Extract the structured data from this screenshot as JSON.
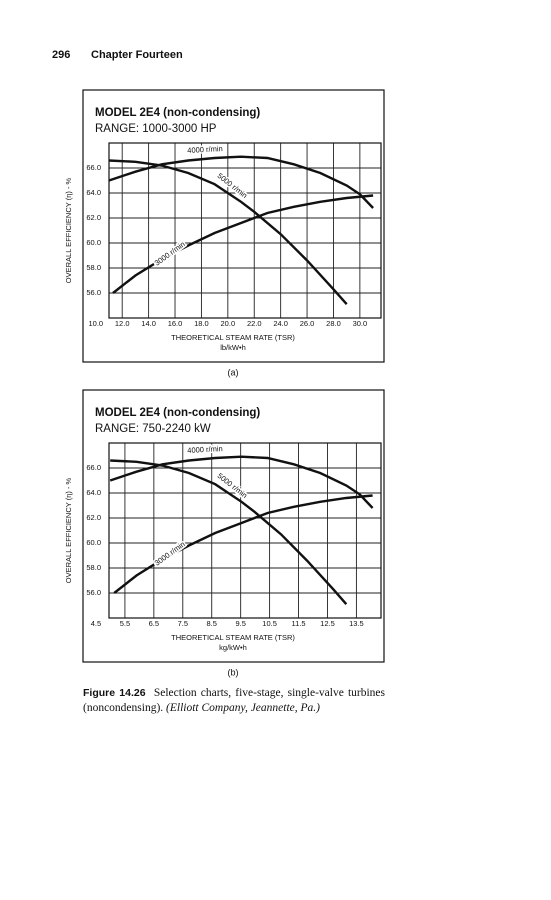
{
  "header": {
    "page": "296",
    "chapter": "Chapter Fourteen"
  },
  "chart_data": [
    {
      "type": "line",
      "title": "MODEL 2E4 (non-condensing)",
      "subtitle": "RANGE: 1000-3000 HP",
      "xlabel": "THEORETICAL STEAM RATE (TSR)",
      "x_unit": "lb/kW•h",
      "ylabel": "OVERALL EFFICIENCY (η) - %",
      "panel_label": "(a)",
      "xlim": [
        11.0,
        31.6
      ],
      "ylim": [
        54,
        68
      ],
      "grid": true,
      "xticks": [
        {
          "value": 10,
          "label": "10.0"
        },
        {
          "value": 12,
          "label": "12.0"
        },
        {
          "value": 14,
          "label": "14.0"
        },
        {
          "value": 16,
          "label": "16.0"
        },
        {
          "value": 18,
          "label": "18.0"
        },
        {
          "value": 20,
          "label": "20.0"
        },
        {
          "value": 22,
          "label": "22.0"
        },
        {
          "value": 24,
          "label": "24.0"
        },
        {
          "value": 26,
          "label": "26.0"
        },
        {
          "value": 28,
          "label": "28.0"
        },
        {
          "value": 30,
          "label": "30.0"
        }
      ],
      "yticks": [
        {
          "value": 56,
          "label": "56.0"
        },
        {
          "value": 58,
          "label": "58.0"
        },
        {
          "value": 60,
          "label": "60.0"
        },
        {
          "value": 62,
          "label": "62.0"
        },
        {
          "value": 64,
          "label": "64.0"
        },
        {
          "value": 66,
          "label": "66.0"
        }
      ],
      "series": [
        {
          "name": "4000 r/min",
          "color": "#111111",
          "x": [
            11,
            13,
            15,
            17,
            19,
            21,
            23,
            25,
            27,
            29,
            30,
            31
          ],
          "values": [
            65.0,
            65.7,
            66.3,
            66.6,
            66.8,
            66.9,
            66.8,
            66.3,
            65.6,
            64.6,
            63.9,
            62.8
          ]
        },
        {
          "name": "5000 r/min",
          "color": "#111111",
          "x": [
            11,
            13,
            15,
            17,
            19,
            21,
            22,
            24,
            26,
            28,
            29
          ],
          "values": [
            66.6,
            66.5,
            66.2,
            65.6,
            64.7,
            63.3,
            62.5,
            60.7,
            58.6,
            56.3,
            55.1
          ]
        },
        {
          "name": "3000 r/min",
          "color": "#111111",
          "x": [
            11.3,
            13,
            15,
            17,
            19,
            21,
            23,
            25,
            27,
            29,
            31
          ],
          "values": [
            56.0,
            57.4,
            58.7,
            59.8,
            60.8,
            61.6,
            62.4,
            62.9,
            63.3,
            63.6,
            63.8
          ]
        }
      ]
    },
    {
      "type": "line",
      "title": "MODEL 2E4 (non-condensing)",
      "subtitle": "RANGE: 750-2240 kW",
      "xlabel": "THEORETICAL STEAM RATE (TSR)",
      "x_unit": "kg/kW•h",
      "ylabel": "OVERALL EFFICIENCY (η) - %",
      "panel_label": "(b)",
      "xlim": [
        4.95,
        14.35
      ],
      "ylim": [
        54,
        68
      ],
      "grid": true,
      "xticks": [
        4.5,
        5.5,
        6.5,
        7.5,
        8.5,
        9.5,
        10.5,
        11.5,
        12.5,
        13.5
      ],
      "yticks": [
        {
          "value": 56,
          "label": "56.0"
        },
        {
          "value": 58,
          "label": "58.0"
        },
        {
          "value": 60,
          "label": "60.0"
        },
        {
          "value": 62,
          "label": "62.0"
        },
        {
          "value": 64,
          "label": "64.0"
        },
        {
          "value": 66,
          "label": "66.0"
        }
      ],
      "series": [
        {
          "name": "4000 r/min",
          "color": "#111111",
          "x": [
            4.99,
            5.9,
            6.8,
            7.71,
            8.62,
            9.53,
            10.43,
            11.34,
            12.25,
            13.15,
            13.61,
            14.06
          ],
          "values": [
            65.0,
            65.7,
            66.3,
            66.6,
            66.8,
            66.9,
            66.8,
            66.3,
            65.6,
            64.6,
            63.9,
            62.8
          ]
        },
        {
          "name": "5000 r/min",
          "color": "#111111",
          "x": [
            4.99,
            5.9,
            6.8,
            7.71,
            8.62,
            9.53,
            9.98,
            10.89,
            11.79,
            12.7,
            13.15
          ],
          "values": [
            66.6,
            66.5,
            66.2,
            65.6,
            64.7,
            63.3,
            62.5,
            60.7,
            58.6,
            56.3,
            55.1
          ]
        },
        {
          "name": "3000 r/min",
          "color": "#111111",
          "x": [
            5.13,
            5.9,
            6.8,
            7.71,
            8.62,
            9.53,
            10.43,
            11.34,
            12.25,
            13.15,
            14.06
          ],
          "values": [
            56.0,
            57.4,
            58.7,
            59.8,
            60.8,
            61.6,
            62.4,
            62.9,
            63.3,
            63.6,
            63.8
          ]
        }
      ]
    }
  ],
  "caption": {
    "label": "Figure 14.26",
    "text": "Selection charts, five-stage, single-valve turbines (noncondensing).",
    "source": "(Elliott Company, Jeannette, Pa.)"
  }
}
